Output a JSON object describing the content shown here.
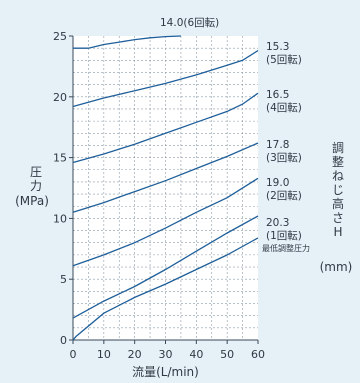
{
  "chart_data": {
    "type": "line",
    "xlabel": "流量(L/min)",
    "ylabel_lines": [
      "圧",
      "力",
      "(MPa)"
    ],
    "right_label_lines": [
      "調",
      "整",
      "ね",
      "じ",
      "高",
      "さ",
      "H",
      "(mm)"
    ],
    "xlim": [
      0,
      60
    ],
    "ylim": [
      0,
      25
    ],
    "x_ticks": [
      0,
      10,
      20,
      30,
      40,
      50,
      60
    ],
    "y_ticks": [
      0,
      5,
      10,
      15,
      20,
      25
    ],
    "grid": true,
    "series": [
      {
        "name": "14.0(6回転)",
        "label_lines": [
          "14.0(6回転)"
        ],
        "x": [
          0,
          5,
          10,
          15,
          20,
          25,
          30,
          35
        ],
        "y": [
          24,
          24,
          24.3,
          24.5,
          24.7,
          24.85,
          24.95,
          25
        ]
      },
      {
        "name": "15.3(5回転)",
        "label_lines": [
          "15.3",
          "(5回転)"
        ],
        "x": [
          0,
          10,
          20,
          30,
          40,
          50,
          55,
          60
        ],
        "y": [
          19.2,
          19.9,
          20.5,
          21.1,
          21.8,
          22.6,
          23.0,
          23.8
        ]
      },
      {
        "name": "16.5(4回転)",
        "label_lines": [
          "16.5",
          "(4回転)"
        ],
        "x": [
          0,
          10,
          20,
          30,
          40,
          50,
          55,
          60
        ],
        "y": [
          14.6,
          15.3,
          16.1,
          17.0,
          17.9,
          18.8,
          19.4,
          20.3
        ]
      },
      {
        "name": "17.8(3回転)",
        "label_lines": [
          "17.8",
          "(3回転)"
        ],
        "x": [
          0,
          10,
          20,
          30,
          40,
          50,
          60
        ],
        "y": [
          10.5,
          11.3,
          12.2,
          13.1,
          14.1,
          15.1,
          16.2
        ]
      },
      {
        "name": "19.0(2回転)",
        "label_lines": [
          "19.0",
          "(2回転)"
        ],
        "x": [
          0,
          10,
          20,
          30,
          40,
          50,
          60
        ],
        "y": [
          6.1,
          7.0,
          8.0,
          9.2,
          10.5,
          11.7,
          13.3
        ]
      },
      {
        "name": "20.3(1回転)",
        "label_lines": [
          "20.3",
          "(1回転)"
        ],
        "x": [
          0,
          10,
          20,
          30,
          40,
          50,
          60
        ],
        "y": [
          1.8,
          3.2,
          4.4,
          5.8,
          7.3,
          8.8,
          10.2
        ]
      },
      {
        "name": "最低調整圧力",
        "label_lines": [
          "最低調整圧力"
        ],
        "x": [
          0,
          1,
          10,
          20,
          30,
          40,
          50,
          60
        ],
        "y": [
          0,
          0.3,
          2.2,
          3.5,
          4.6,
          5.8,
          7.0,
          8.4
        ]
      }
    ]
  },
  "colors": {
    "background": "#e6f0f7",
    "plot_background": "#ffffff",
    "curve": "#1f5f9a",
    "grid": "#8a9aa8",
    "axis": "#3a4a58",
    "text": "#2f3a45"
  }
}
